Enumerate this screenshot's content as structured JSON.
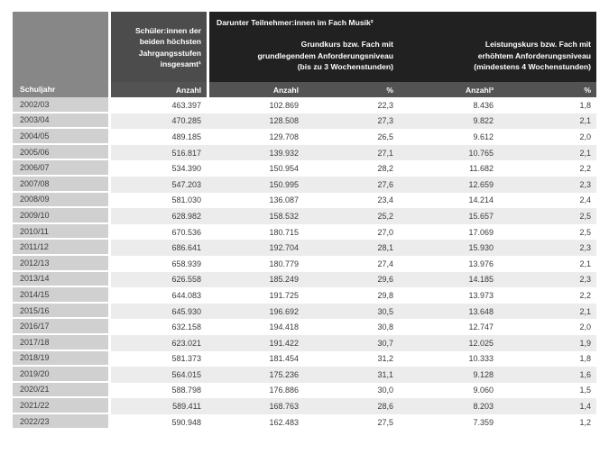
{
  "colors": {
    "col1_header": "#878787",
    "total_header": "#4c4c4c",
    "darunter_header": "#212121",
    "band": "#535353",
    "year_cell": "#d0d0d0",
    "row_stripe": "#ececec",
    "data_text": "#3b3b3b",
    "header_text": "#ffffff"
  },
  "table": {
    "header": {
      "schuljahr_label": "Schuljahr",
      "total_lines": [
        "Schüler:innen der",
        "beiden höchsten",
        "Jahrgangsstufen",
        "insgesamt¹"
      ],
      "darunter_title": "Darunter Teilnehmer:innen im Fach Musik²",
      "grundkurs_lines": [
        "Grundkurs bzw. Fach mit",
        "grundlegendem Anforderungsniveau",
        "(bis zu 3 Wochenstunden)"
      ],
      "leistungskurs_lines": [
        "Leistungskurs bzw. Fach mit",
        "erhöhtem Anforderungsniveau",
        "(mindestens 4 Wochenstunden)"
      ],
      "band": [
        "Anzahl",
        "Anzahl",
        "%",
        "Anzahl³",
        "%"
      ]
    },
    "rows": [
      {
        "year": "2002/03",
        "values": [
          "463.397",
          "102.869",
          "22,3",
          "8.436",
          "1,8"
        ]
      },
      {
        "year": "2003/04",
        "values": [
          "470.285",
          "128.508",
          "27,3",
          "9.822",
          "2,1"
        ]
      },
      {
        "year": "2004/05",
        "values": [
          "489.185",
          "129.708",
          "26,5",
          "9.612",
          "2,0"
        ]
      },
      {
        "year": "2005/06",
        "values": [
          "516.817",
          "139.932",
          "27,1",
          "10.765",
          "2,1"
        ]
      },
      {
        "year": "2006/07",
        "values": [
          "534.390",
          "150.954",
          "28,2",
          "11.682",
          "2,2"
        ]
      },
      {
        "year": "2007/08",
        "values": [
          "547.203",
          "150.995",
          "27,6",
          "12.659",
          "2,3"
        ]
      },
      {
        "year": "2008/09",
        "values": [
          "581.030",
          "136.087",
          "23,4",
          "14.214",
          "2,4"
        ]
      },
      {
        "year": "2009/10",
        "values": [
          "628.982",
          "158.532",
          "25,2",
          "15.657",
          "2,5"
        ]
      },
      {
        "year": "2010/11",
        "values": [
          "670.536",
          "180.715",
          "27,0",
          "17.069",
          "2,5"
        ]
      },
      {
        "year": "2011/12",
        "values": [
          "686.641",
          "192.704",
          "28,1",
          "15.930",
          "2,3"
        ]
      },
      {
        "year": "2012/13",
        "values": [
          "658.939",
          "180.779",
          "27,4",
          "13.976",
          "2,1"
        ]
      },
      {
        "year": "2013/14",
        "values": [
          "626.558",
          "185.249",
          "29,6",
          "14.185",
          "2,3"
        ]
      },
      {
        "year": "2014/15",
        "values": [
          "644.083",
          "191.725",
          "29,8",
          "13.973",
          "2,2"
        ]
      },
      {
        "year": "2015/16",
        "values": [
          "645.930",
          "196.692",
          "30,5",
          "13.648",
          "2,1"
        ]
      },
      {
        "year": "2016/17",
        "values": [
          "632.158",
          "194.418",
          "30,8",
          "12.747",
          "2,0"
        ]
      },
      {
        "year": "2017/18",
        "values": [
          "623.021",
          "191.422",
          "30,7",
          "12.025",
          "1,9"
        ]
      },
      {
        "year": "2018/19",
        "values": [
          "581.373",
          "181.454",
          "31,2",
          "10.333",
          "1,8"
        ]
      },
      {
        "year": "2019/20",
        "values": [
          "564.015",
          "175.236",
          "31,1",
          "9.128",
          "1,6"
        ]
      },
      {
        "year": "2020/21",
        "values": [
          "588.798",
          "176.886",
          "30,0",
          "9.060",
          "1,5"
        ]
      },
      {
        "year": "2021/22",
        "values": [
          "589.411",
          "168.763",
          "28,6",
          "8.203",
          "1,4"
        ]
      },
      {
        "year": "2022/23",
        "values": [
          "590.948",
          "162.483",
          "27,5",
          "7.359",
          "1,2"
        ]
      }
    ]
  }
}
